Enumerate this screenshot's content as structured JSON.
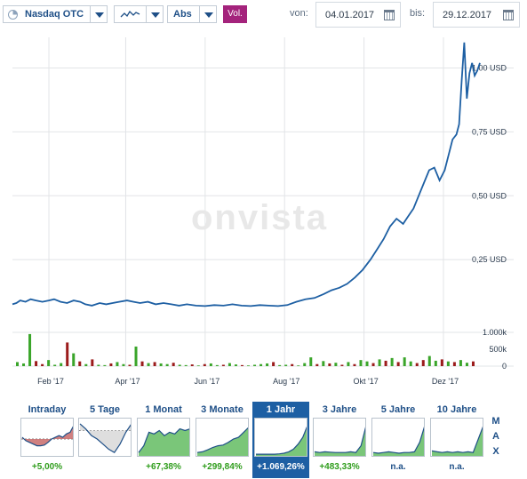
{
  "toolbar": {
    "exchange_label": "Nasdaq OTC",
    "chart_style_icon": "line-chart-icon",
    "scale_label": "Abs",
    "volume_label": "Vol.",
    "from_label": "von:",
    "from_date": "04.01.2017",
    "to_label": "bis:",
    "to_date": "29.12.2017"
  },
  "watermark": "onvista",
  "colors": {
    "line": "#1d5fa3",
    "vol_up": "#3aa52a",
    "vol_down": "#9b1b1b",
    "active_tab": "#1d5fa3",
    "vol_button": "#a4237c"
  },
  "chart_data": {
    "type": "line",
    "x_tick_labels": [
      "Feb '17",
      "Apr '17",
      "Jun '17",
      "Aug '17",
      "Okt '17",
      "Dez '17"
    ],
    "y_tick_labels": [
      "1,00 USD",
      "0,75 USD",
      "0,50 USD",
      "0,25 USD"
    ],
    "y_ticks": [
      1.0,
      0.75,
      0.5,
      0.25
    ],
    "ylim": [
      0,
      1.12
    ],
    "grid": true,
    "series": [
      {
        "type": "line",
        "x": [
          "2017-01-04",
          "2017-01-07",
          "2017-01-10",
          "2017-01-14",
          "2017-01-18",
          "2017-01-22",
          "2017-01-27",
          "2017-02-01",
          "2017-02-05",
          "2017-02-10",
          "2017-02-15",
          "2017-02-20",
          "2017-02-25",
          "2017-03-01",
          "2017-03-06",
          "2017-03-12",
          "2017-03-17",
          "2017-03-22",
          "2017-03-27",
          "2017-04-02",
          "2017-04-07",
          "2017-04-12",
          "2017-04-18",
          "2017-04-24",
          "2017-04-30",
          "2017-05-06",
          "2017-05-12",
          "2017-05-18",
          "2017-05-25",
          "2017-06-01",
          "2017-06-08",
          "2017-06-15",
          "2017-06-22",
          "2017-06-29",
          "2017-07-06",
          "2017-07-13",
          "2017-07-20",
          "2017-07-27",
          "2017-08-03",
          "2017-08-10",
          "2017-08-17",
          "2017-08-24",
          "2017-08-31",
          "2017-09-06",
          "2017-09-12",
          "2017-09-18",
          "2017-09-24",
          "2017-09-30",
          "2017-10-06",
          "2017-10-11",
          "2017-10-16",
          "2017-10-21",
          "2017-10-26",
          "2017-10-31",
          "2017-11-04",
          "2017-11-08",
          "2017-11-12",
          "2017-11-16",
          "2017-11-20",
          "2017-11-24",
          "2017-11-28",
          "2017-12-02",
          "2017-12-05",
          "2017-12-08",
          "2017-12-11",
          "2017-12-13",
          "2017-12-15",
          "2017-12-17",
          "2017-12-19",
          "2017-12-21",
          "2017-12-23",
          "2017-12-25",
          "2017-12-27",
          "2017-12-29"
        ],
        "y": [
          0.075,
          0.08,
          0.09,
          0.085,
          0.095,
          0.09,
          0.085,
          0.09,
          0.095,
          0.085,
          0.08,
          0.09,
          0.085,
          0.075,
          0.07,
          0.08,
          0.075,
          0.08,
          0.085,
          0.09,
          0.085,
          0.08,
          0.085,
          0.075,
          0.08,
          0.075,
          0.07,
          0.075,
          0.07,
          0.068,
          0.072,
          0.07,
          0.075,
          0.07,
          0.068,
          0.072,
          0.07,
          0.068,
          0.072,
          0.085,
          0.095,
          0.1,
          0.115,
          0.13,
          0.14,
          0.155,
          0.18,
          0.21,
          0.25,
          0.29,
          0.33,
          0.38,
          0.41,
          0.39,
          0.42,
          0.45,
          0.5,
          0.55,
          0.6,
          0.61,
          0.56,
          0.6,
          0.66,
          0.72,
          0.74,
          0.78,
          0.95,
          1.1,
          0.88,
          0.98,
          1.02,
          0.97,
          0.99,
          1.02
        ]
      },
      {
        "type": "volume_bars",
        "ylim": [
          0,
          1000
        ],
        "y_tick_labels": [
          "1.000k",
          "500k",
          "0"
        ],
        "y_ticks": [
          1000,
          500,
          0
        ],
        "values_k": [
          120,
          80,
          950,
          150,
          60,
          180,
          40,
          90,
          700,
          380,
          140,
          60,
          200,
          40,
          30,
          80,
          120,
          60,
          40,
          580,
          140,
          90,
          120,
          80,
          60,
          100,
          40,
          30,
          50,
          20,
          60,
          80,
          30,
          40,
          90,
          50,
          30,
          20,
          40,
          60,
          80,
          120,
          30,
          40,
          60,
          20,
          90,
          260,
          60,
          150,
          80,
          100,
          40,
          120,
          60,
          180,
          140,
          90,
          200,
          160,
          240,
          120,
          260,
          140,
          90,
          180,
          300,
          160,
          200,
          140,
          120,
          180,
          100,
          140
        ],
        "directions": [
          "u",
          "u",
          "u",
          "d",
          "d",
          "u",
          "u",
          "u",
          "d",
          "u",
          "d",
          "u",
          "d",
          "u",
          "u",
          "d",
          "u",
          "u",
          "d",
          "u",
          "d",
          "u",
          "d",
          "u",
          "u",
          "d",
          "u",
          "u",
          "d",
          "u",
          "d",
          "u",
          "u",
          "d",
          "u",
          "u",
          "d",
          "u",
          "u",
          "u",
          "u",
          "d",
          "u",
          "u",
          "d",
          "u",
          "u",
          "u",
          "d",
          "u",
          "d",
          "u",
          "d",
          "u",
          "d",
          "u",
          "u",
          "d",
          "u",
          "d",
          "u",
          "d",
          "u",
          "u",
          "d",
          "d",
          "u",
          "u",
          "d",
          "u",
          "d",
          "u",
          "u",
          "d"
        ]
      }
    ]
  },
  "periods": [
    {
      "label": "Intraday",
      "change": "+5,00%",
      "active": false,
      "thumb": [
        0.55,
        0.45,
        0.4,
        0.35,
        0.3,
        0.3,
        0.32,
        0.4,
        0.5,
        0.55,
        0.6,
        0.55,
        0.65,
        0.7,
        0.9
      ],
      "ref": 0.5
    },
    {
      "label": "5 Tage",
      "change": "",
      "active": false,
      "thumb": [
        0.95,
        0.8,
        0.6,
        0.5,
        0.35,
        0.2,
        0.1,
        0.35,
        0.7,
        0.95
      ],
      "ref": 0.75
    },
    {
      "label": "1 Monat",
      "change": "+67,38%",
      "active": false,
      "thumb": [
        0.1,
        0.3,
        0.7,
        0.65,
        0.75,
        0.6,
        0.7,
        0.65,
        0.8,
        0.75,
        0.8
      ],
      "ref": 0
    },
    {
      "label": "3 Monate",
      "change": "+299,84%",
      "active": false,
      "thumb": [
        0.1,
        0.12,
        0.18,
        0.25,
        0.3,
        0.32,
        0.4,
        0.5,
        0.55,
        0.7,
        0.85
      ],
      "ref": 0
    },
    {
      "label": "1 Jahr",
      "change": "+1.069,26%",
      "active": true,
      "thumb": [
        0.05,
        0.05,
        0.05,
        0.05,
        0.05,
        0.06,
        0.08,
        0.12,
        0.2,
        0.35,
        0.55,
        0.9
      ],
      "ref": 0
    },
    {
      "label": "3 Jahre",
      "change": "+483,33%",
      "active": false,
      "thumb": [
        0.12,
        0.1,
        0.12,
        0.11,
        0.1,
        0.1,
        0.1,
        0.12,
        0.1,
        0.3,
        0.9
      ],
      "ref": 0
    },
    {
      "label": "5 Jahre",
      "change": "n.a.",
      "active": false,
      "thumb": [
        0.1,
        0.08,
        0.1,
        0.12,
        0.1,
        0.08,
        0.1,
        0.1,
        0.12,
        0.4,
        0.9
      ],
      "ref": 0
    },
    {
      "label": "10 Jahre",
      "change": "n.a.",
      "active": false,
      "thumb": [
        0.15,
        0.12,
        0.1,
        0.12,
        0.1,
        0.12,
        0.1,
        0.12,
        0.1,
        0.5,
        0.9
      ],
      "ref": 0
    }
  ],
  "max_letters": [
    "M",
    "A",
    "X"
  ]
}
